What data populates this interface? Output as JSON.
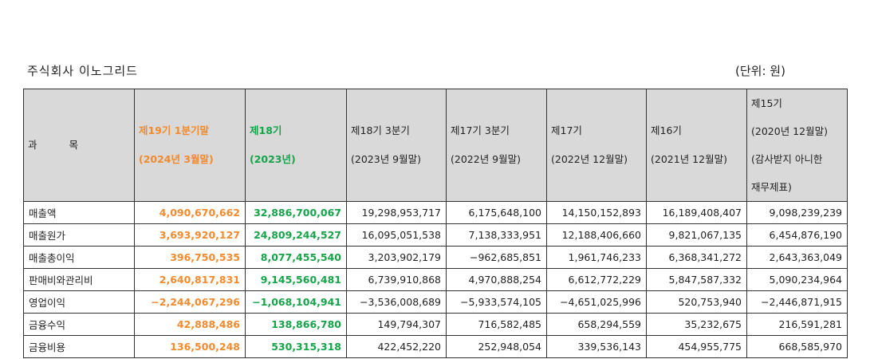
{
  "company": "주식회사 이노그리드",
  "unit": "(단위: 원)",
  "headers": {
    "subject": "과 목",
    "q1_2024": [
      "제19기 1분기말",
      "(2024년 3월말)"
    ],
    "fy18": [
      "제18기",
      "(2023년)"
    ],
    "q3_2023": [
      "제18기 3분기",
      "(2023년 9월말)"
    ],
    "q3_2022": [
      "제17기 3분기",
      "(2022년 9월말)"
    ],
    "fy17": [
      "제17기",
      "(2022년 12월말)"
    ],
    "fy16": [
      "제16기",
      "(2021년 12월말)"
    ],
    "fy15": [
      "제15기",
      "(2020년 12월말)",
      "(감사받지 아니한",
      "재무제표)"
    ]
  },
  "rows": [
    {
      "label": "매출액",
      "values": [
        "4,090,670,662",
        "32,886,700,067",
        "19,298,953,717",
        "6,175,648,100",
        "14,150,152,893",
        "16,189,408,407",
        "9,098,239,239"
      ]
    },
    {
      "label": "매출원가",
      "values": [
        "3,693,920,127",
        "24,809,244,527",
        "16,095,051,538",
        "7,138,333,951",
        "12,188,406,660",
        "9,821,067,135",
        "6,454,876,190"
      ]
    },
    {
      "label": "매출총이익",
      "values": [
        "396,750,535",
        "8,077,455,540",
        "3,203,902,179",
        "−962,685,851",
        "1,961,746,233",
        "6,368,341,272",
        "2,643,363,049"
      ]
    },
    {
      "label": "판매비와관리비",
      "values": [
        "2,640,817,831",
        "9,145,560,481",
        "6,739,910,868",
        "4,970,888,254",
        "6,612,772,229",
        "5,847,587,332",
        "5,090,234,964"
      ]
    },
    {
      "label": "영업이익",
      "values": [
        "−2,244,067,296",
        "−1,068,104,941",
        "−3,536,008,689",
        "−5,933,574,105",
        "−4,651,025,996",
        "520,753,940",
        "−2,446,871,915"
      ]
    },
    {
      "label": "금융수익",
      "values": [
        "42,888,486",
        "138,866,780",
        "149,794,307",
        "716,582,485",
        "658,294,559",
        "35,232,675",
        "216,591,281"
      ]
    },
    {
      "label": "금융비용",
      "values": [
        "136,500,248",
        "530,315,318",
        "422,452,220",
        "252,948,054",
        "339,536,143",
        "454,955,775",
        "668,585,970"
      ]
    }
  ],
  "colors": {
    "current_period": "#f28a2e",
    "previous_year": "#16a34a",
    "header_bg": "#d9d9d9"
  }
}
